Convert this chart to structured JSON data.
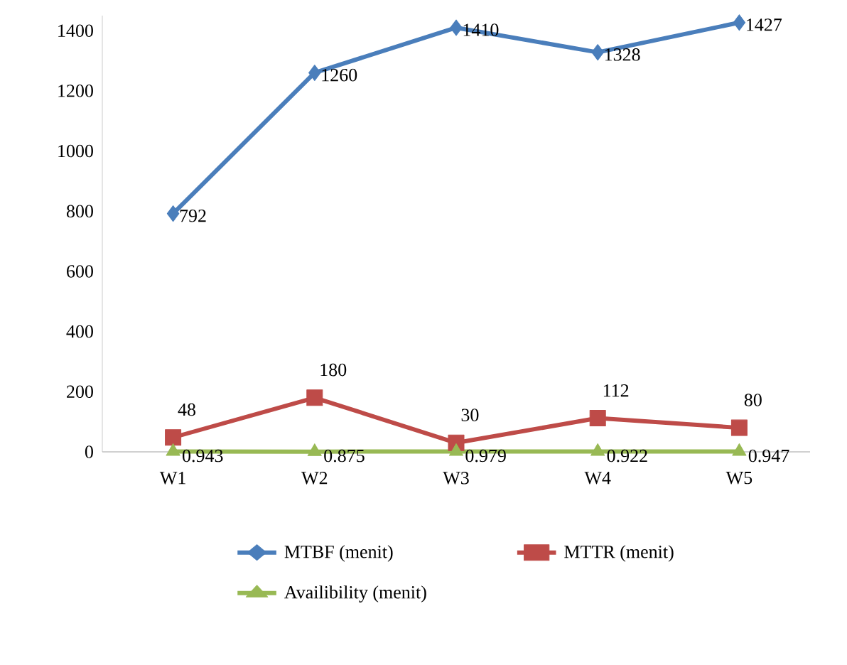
{
  "chart_data": {
    "type": "line",
    "categories": [
      "W1",
      "W2",
      "W3",
      "W4",
      "W5"
    ],
    "series": [
      {
        "name": "MTBF (menit)",
        "color": "#4a7ebb",
        "marker": "diamond",
        "values": [
          792,
          1260,
          1410,
          1328,
          1427
        ]
      },
      {
        "name": "MTTR (menit)",
        "color": "#be4b48",
        "marker": "square",
        "values": [
          48,
          180,
          30,
          112,
          80
        ]
      },
      {
        "name": "Availibility (menit)",
        "color": "#98b954",
        "marker": "triangle",
        "values": [
          0.943,
          0.875,
          0.979,
          0.922,
          0.947
        ]
      }
    ],
    "ylim": [
      0,
      1450
    ],
    "yticks": [
      0,
      200,
      400,
      600,
      800,
      1000,
      1200,
      1400
    ],
    "grid": false,
    "legend": "bottom",
    "data_labels": true
  }
}
